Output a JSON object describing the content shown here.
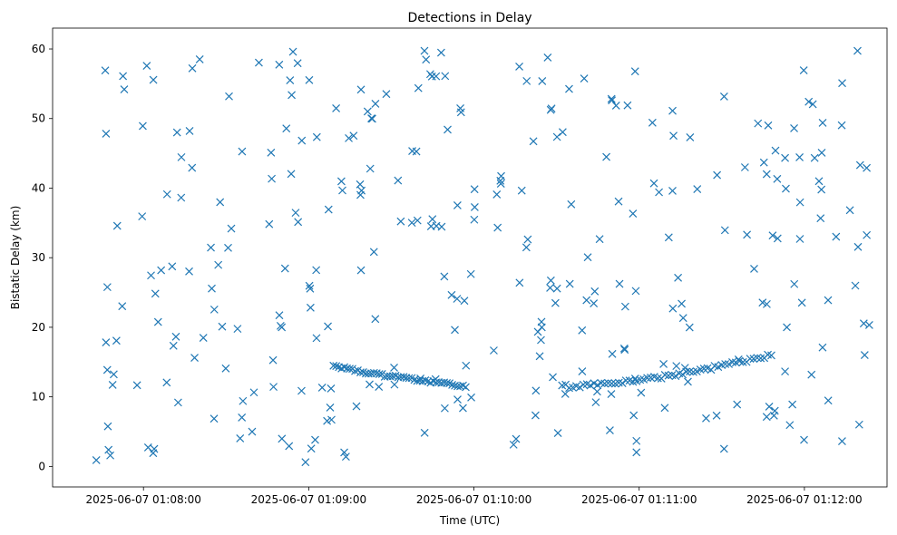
{
  "chart_data": {
    "type": "scatter",
    "title": "Detections in Delay",
    "xlabel": "Time (UTC)",
    "ylabel": "Bistatic Delay (km)",
    "x_format": "datetime",
    "xlim": [
      "2025-06-07 01:07:27",
      "2025-06-07 01:12:30"
    ],
    "ylim": [
      -2.95,
      63.0
    ],
    "xticks": [
      "2025-06-07 01:08:00",
      "2025-06-07 01:09:00",
      "2025-06-07 01:10:00",
      "2025-06-07 01:11:00",
      "2025-06-07 01:12:00"
    ],
    "yticks": [
      0,
      10,
      20,
      30,
      40,
      50,
      60
    ],
    "grid": false,
    "legend": "none",
    "marker": "x",
    "color": "#1f77b4",
    "track": {
      "segment1": {
        "start": "2025-06-07 01:09:09",
        "end": "2025-06-07 01:09:57",
        "y_start": 14.5,
        "y_end": 11.5
      },
      "segment2": {
        "start": "2025-06-07 01:10:32",
        "end": "2025-06-07 01:11:48",
        "y_start": 11.5,
        "y_end": 16.0
      }
    },
    "point_count": 430
  }
}
